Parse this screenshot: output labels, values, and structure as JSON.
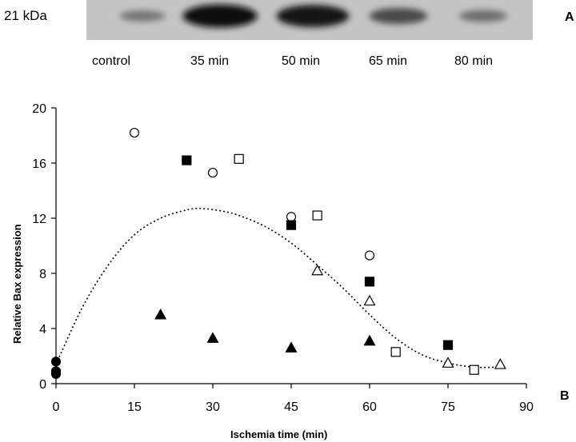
{
  "blot": {
    "mw_label": "21 kDa",
    "panel_label_a": "A",
    "lanes": [
      "control",
      "35 min",
      "50 min",
      "65 min",
      "80 min"
    ],
    "band_intensity": [
      0.25,
      0.95,
      0.9,
      0.55,
      0.3
    ]
  },
  "chart_data": {
    "type": "scatter",
    "panel_label": "B",
    "xlabel": "Ischemia time (min)",
    "ylabel": "Relative Bax expression",
    "xlim": [
      0,
      90
    ],
    "ylim": [
      0,
      20
    ],
    "xticks": [
      0,
      15,
      30,
      45,
      60,
      75,
      90
    ],
    "yticks": [
      0,
      4,
      8,
      12,
      16,
      20
    ],
    "grid": false,
    "legend": "none",
    "series": [
      {
        "marker": "open-circle",
        "x": [
          0,
          15,
          30,
          45,
          60
        ],
        "y": [
          0.9,
          18.2,
          15.3,
          12.1,
          9.3
        ]
      },
      {
        "marker": "filled-square",
        "x": [
          25,
          45,
          60,
          75
        ],
        "y": [
          16.2,
          11.5,
          7.4,
          2.8
        ]
      },
      {
        "marker": "open-square",
        "x": [
          35,
          50,
          65,
          80
        ],
        "y": [
          16.3,
          12.2,
          2.3,
          1.0
        ]
      },
      {
        "marker": "open-triangle",
        "x": [
          50,
          60,
          75,
          85
        ],
        "y": [
          8.2,
          6.0,
          1.5,
          1.4
        ]
      },
      {
        "marker": "filled-triangle",
        "x": [
          20,
          30,
          45,
          60
        ],
        "y": [
          5.0,
          3.3,
          2.6,
          3.1
        ]
      },
      {
        "marker": "filled-circle",
        "x": [
          0,
          0,
          0
        ],
        "y": [
          1.6,
          0.9,
          0.7
        ]
      }
    ],
    "trendline": {
      "style": "dotted",
      "x": [
        0,
        5,
        10,
        15,
        20,
        25,
        28,
        32,
        35,
        40,
        45,
        50,
        55,
        60,
        65,
        70,
        75,
        80,
        85
      ],
      "y": [
        1.4,
        5.5,
        8.6,
        10.8,
        12.0,
        12.6,
        12.7,
        12.5,
        12.2,
        11.4,
        10.2,
        8.6,
        6.9,
        5.0,
        3.3,
        2.1,
        1.5,
        1.2,
        1.2
      ]
    }
  }
}
